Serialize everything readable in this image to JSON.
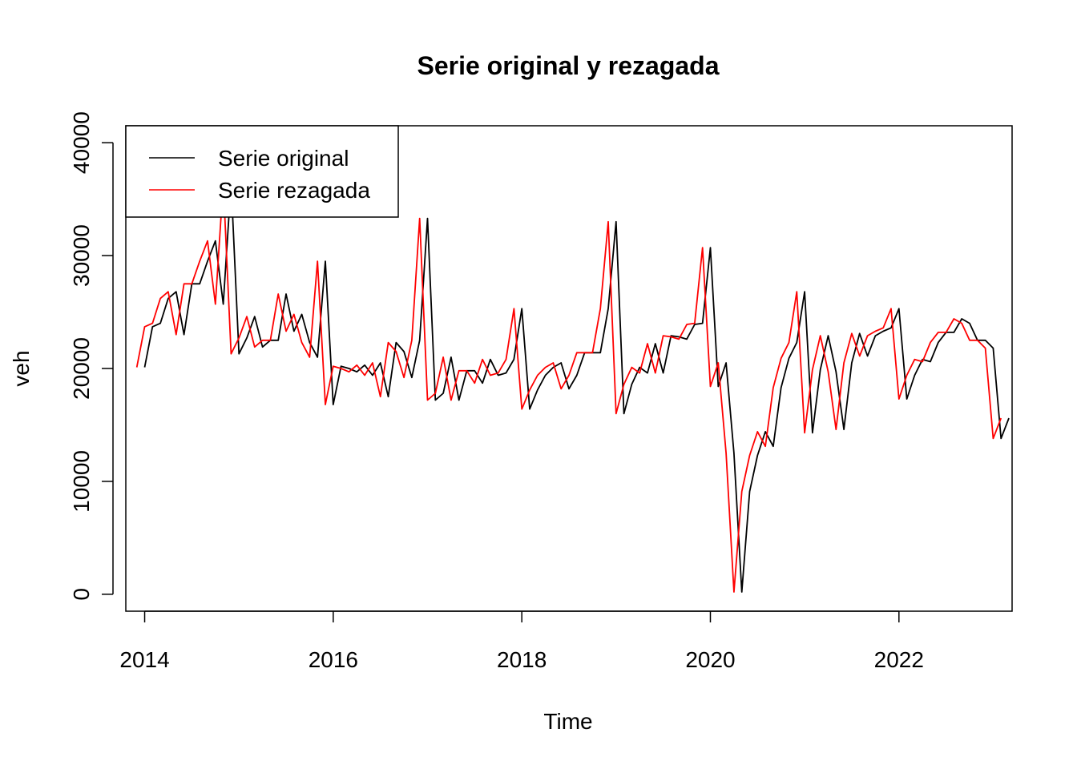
{
  "chart_data": {
    "type": "line",
    "title": "Serie original y rezagada",
    "xlabel": "Time",
    "ylabel": "veh",
    "xlim": [
      2013.8,
      2023.2
    ],
    "ylim": [
      -1500,
      41500
    ],
    "x_ticks": [
      2014,
      2016,
      2018,
      2020,
      2022
    ],
    "x_tick_labels": [
      "2014",
      "2016",
      "2018",
      "2020",
      "2022"
    ],
    "y_ticks": [
      0,
      10000,
      20000,
      30000,
      40000
    ],
    "y_tick_labels": [
      "0",
      "10000",
      "20000",
      "30000",
      "40000"
    ],
    "legend_position": "top-left",
    "original_start": 2014.0,
    "lagged_start": 2013.9167,
    "step": 0.08333,
    "series": [
      {
        "name": "Serie original",
        "color": "#000000",
        "values": [
          20100,
          23700,
          24000,
          26200,
          26800,
          23000,
          27500,
          27500,
          29500,
          31300,
          25700,
          36500,
          21300,
          22700,
          24600,
          21900,
          22500,
          22500,
          26600,
          23300,
          24800,
          22300,
          21000,
          29500,
          16800,
          20200,
          20000,
          19700,
          20300,
          19400,
          20500,
          17500,
          22300,
          21500,
          19200,
          22500,
          33300,
          17200,
          17800,
          21000,
          17200,
          19800,
          19800,
          18700,
          20800,
          19400,
          19600,
          20800,
          25300,
          16400,
          18100,
          19400,
          20100,
          20500,
          18200,
          19400,
          21400,
          21400,
          21400,
          25300,
          33000,
          16000,
          18600,
          20100,
          19600,
          22200,
          19600,
          22900,
          22800,
          22600,
          23900,
          24000,
          30700,
          18400,
          20500,
          12500,
          200,
          9100,
          12300,
          14400,
          13100,
          18300,
          20900,
          22300,
          26800,
          14300,
          19900,
          22900,
          19700,
          14600,
          20500,
          23100,
          21100,
          22900,
          23300,
          23600,
          25300,
          17300,
          19400,
          20800,
          20600,
          22300,
          23200,
          23200,
          24400,
          24000,
          22500,
          22500,
          21800,
          13800,
          15600
        ]
      },
      {
        "name": "Serie rezagada",
        "color": "#ff0000",
        "values": [
          20100,
          23700,
          24000,
          26200,
          26800,
          23000,
          27500,
          27500,
          29500,
          31300,
          25700,
          36500,
          21300,
          22700,
          24600,
          21900,
          22500,
          22500,
          26600,
          23300,
          24800,
          22300,
          21000,
          29500,
          16800,
          20200,
          20000,
          19700,
          20300,
          19400,
          20500,
          17500,
          22300,
          21500,
          19200,
          22500,
          33300,
          17200,
          17800,
          21000,
          17200,
          19800,
          19800,
          18700,
          20800,
          19400,
          19600,
          20800,
          25300,
          16400,
          18100,
          19400,
          20100,
          20500,
          18200,
          19400,
          21400,
          21400,
          21400,
          25300,
          33000,
          16000,
          18600,
          20100,
          19600,
          22200,
          19600,
          22900,
          22800,
          22600,
          23900,
          24000,
          30700,
          18400,
          20500,
          12500,
          200,
          9100,
          12300,
          14400,
          13100,
          18300,
          20900,
          22300,
          26800,
          14300,
          19900,
          22900,
          19700,
          14600,
          20500,
          23100,
          21100,
          22900,
          23300,
          23600,
          25300,
          17300,
          19400,
          20800,
          20600,
          22300,
          23200,
          23200,
          24400,
          24000,
          22500,
          22500,
          21800,
          13800,
          15600
        ]
      }
    ]
  }
}
